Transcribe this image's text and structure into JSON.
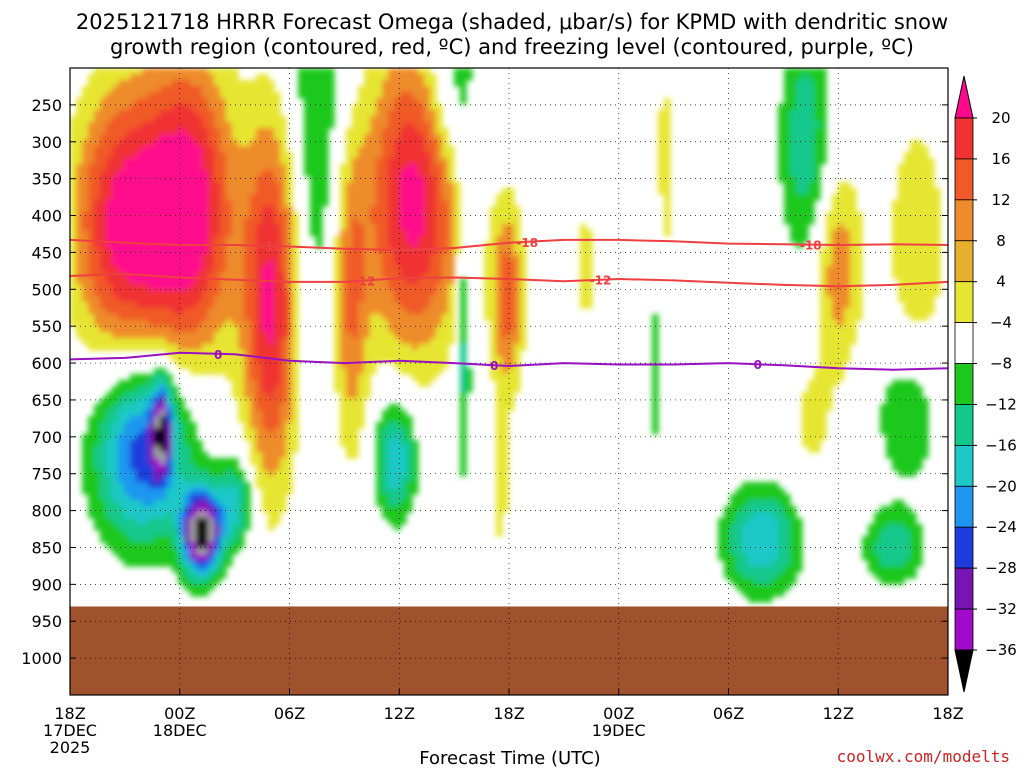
{
  "title_line1": "2025121718 HRRR Forecast Omega (shaded, μbar/s) for KPMD with dendritic snow",
  "title_line2": "growth region (contoured, red, ºC) and freezing level (contoured, purple, ºC)",
  "credit": "coolwx.com/modelts",
  "chart_data": {
    "type": "heatmap",
    "title": "2025121718 HRRR Forecast Omega (shaded, μbar/s) for KPMD with dendritic snow growth region (contoured, red, ºC) and freezing level (contoured, purple, ºC)",
    "xlabel": "Forecast Time (UTC)",
    "ylabel": "",
    "x_range_hours": [
      0,
      48
    ],
    "y_range_hpa": [
      200,
      1050
    ],
    "x_ticks": [
      {
        "hour": 0,
        "l1": "18Z",
        "l2": "17DEC",
        "l3": "2025"
      },
      {
        "hour": 6,
        "l1": "00Z",
        "l2": "18DEC",
        "l3": ""
      },
      {
        "hour": 12,
        "l1": "06Z",
        "l2": "",
        "l3": ""
      },
      {
        "hour": 18,
        "l1": "12Z",
        "l2": "",
        "l3": ""
      },
      {
        "hour": 24,
        "l1": "18Z",
        "l2": "",
        "l3": ""
      },
      {
        "hour": 30,
        "l1": "00Z",
        "l2": "19DEC",
        "l3": ""
      },
      {
        "hour": 36,
        "l1": "06Z",
        "l2": "",
        "l3": ""
      },
      {
        "hour": 42,
        "l1": "12Z",
        "l2": "",
        "l3": ""
      },
      {
        "hour": 48,
        "l1": "18Z",
        "l2": "",
        "l3": ""
      }
    ],
    "y_ticks": [
      "250",
      "300",
      "350",
      "400",
      "450",
      "500",
      "550",
      "600",
      "650",
      "700",
      "750",
      "800",
      "850",
      "900",
      "950",
      "1000"
    ],
    "ground_level_hpa": 930,
    "colorbar": {
      "unit": "μbar/s",
      "labels": [
        "20",
        "16",
        "12",
        "8",
        "4",
        "−4",
        "−8",
        "−12",
        "−16",
        "−20",
        "−24",
        "−28",
        "−32",
        "−36"
      ],
      "colors": [
        "#ff0a8c",
        "#f03232",
        "#f05a28",
        "#ee8b2a",
        "#e6b02e",
        "#e6e632",
        "#ffffff",
        "#1ec81e",
        "#14c88c",
        "#1ec8c8",
        "#1e96f0",
        "#1e3cdc",
        "#7814b4",
        "#a00ac8",
        "#a0a0a0",
        "#000000"
      ]
    },
    "omega_blobs": [
      {
        "hour": 3.0,
        "hpa": 410,
        "rh": 2.8,
        "rp": 180,
        "peak": 22
      },
      {
        "hour": 6.6,
        "hpa": 390,
        "rh": 2.4,
        "rp": 200,
        "peak": 22
      },
      {
        "hour": 11.0,
        "hpa": 520,
        "rh": 1.5,
        "rp": 240,
        "peak": 21
      },
      {
        "hour": 18.8,
        "hpa": 380,
        "rh": 2.6,
        "rp": 200,
        "peak": 22
      },
      {
        "hour": 15.3,
        "hpa": 520,
        "rh": 1.0,
        "rp": 210,
        "peak": 12
      },
      {
        "hour": 23.9,
        "hpa": 510,
        "rh": 0.9,
        "rp": 130,
        "peak": 14
      },
      {
        "hour": 42.0,
        "hpa": 470,
        "rh": 1.3,
        "rp": 140,
        "peak": 11
      },
      {
        "hour": 46.3,
        "hpa": 440,
        "rh": 1.6,
        "rp": 170,
        "peak": 8
      },
      {
        "hour": 32.5,
        "hpa": 360,
        "rh": 0.7,
        "rp": 200,
        "peak": 6
      },
      {
        "hour": 28.2,
        "hpa": 470,
        "rh": 0.6,
        "rp": 140,
        "peak": 5
      },
      {
        "hour": 40.5,
        "hpa": 680,
        "rh": 1.3,
        "rp": 90,
        "peak": 5
      },
      {
        "hour": 23.5,
        "hpa": 780,
        "rh": 0.6,
        "rp": 120,
        "peak": 5
      },
      {
        "hour": 4.0,
        "hpa": 720,
        "rh": 2.6,
        "rp": 120,
        "peak": -23
      },
      {
        "hour": 7.2,
        "hpa": 830,
        "rh": 1.0,
        "rp": 55,
        "peak": -40
      },
      {
        "hour": 5.0,
        "hpa": 690,
        "rh": 0.5,
        "rp": 60,
        "peak": -25
      },
      {
        "hour": 9.0,
        "hpa": 790,
        "rh": 1.0,
        "rp": 60,
        "peak": -14
      },
      {
        "hour": 17.8,
        "hpa": 730,
        "rh": 1.1,
        "rp": 80,
        "peak": -16
      },
      {
        "hour": 13.5,
        "hpa": 230,
        "rh": 1.5,
        "rp": 400,
        "peak": -8
      },
      {
        "hour": 21.0,
        "hpa": 230,
        "rh": 1.5,
        "rp": 130,
        "peak": -9
      },
      {
        "hour": 21.5,
        "hpa": 560,
        "rh": 0.4,
        "rp": 200,
        "peak": -11
      },
      {
        "hour": 40.2,
        "hpa": 300,
        "rh": 1.4,
        "rp": 160,
        "peak": -11
      },
      {
        "hour": 37.8,
        "hpa": 840,
        "rh": 2.0,
        "rp": 70,
        "peak": -16
      },
      {
        "hour": 45.8,
        "hpa": 670,
        "rh": 1.8,
        "rp": 100,
        "peak": -8
      },
      {
        "hour": 45.0,
        "hpa": 850,
        "rh": 1.6,
        "rp": 50,
        "peak": -11
      },
      {
        "hour": 32.0,
        "hpa": 580,
        "rh": 0.6,
        "rp": 200,
        "peak": -6
      }
    ],
    "contours": [
      {
        "name": "-18",
        "color": "#ee4040",
        "label_hours": [
          11.0,
          25.0,
          40.5
        ],
        "points": [
          [
            0,
            433
          ],
          [
            3,
            437
          ],
          [
            6,
            440
          ],
          [
            9,
            440
          ],
          [
            12,
            442
          ],
          [
            15,
            445
          ],
          [
            18,
            447
          ],
          [
            21,
            444
          ],
          [
            24,
            437
          ],
          [
            27,
            433
          ],
          [
            30,
            433
          ],
          [
            33,
            435
          ],
          [
            36,
            438
          ],
          [
            39,
            439
          ],
          [
            42,
            440
          ],
          [
            45,
            439
          ],
          [
            48,
            440
          ]
        ]
      },
      {
        "name": "-12",
        "color": "#ee4040",
        "label_hours": [
          16.1,
          29.0
        ],
        "points": [
          [
            0,
            482
          ],
          [
            3,
            479
          ],
          [
            6,
            484
          ],
          [
            9,
            487
          ],
          [
            12,
            490
          ],
          [
            15,
            490
          ],
          [
            18,
            485
          ],
          [
            21,
            484
          ],
          [
            24,
            486
          ],
          [
            27,
            489
          ],
          [
            30,
            486
          ],
          [
            33,
            488
          ],
          [
            36,
            491
          ],
          [
            39,
            494
          ],
          [
            42,
            496
          ],
          [
            45,
            494
          ],
          [
            48,
            490
          ]
        ]
      },
      {
        "name": "0",
        "color": "#9a10c0",
        "label_hours": [
          8.1,
          23.2,
          37.6
        ],
        "points": [
          [
            0,
            595
          ],
          [
            3,
            593
          ],
          [
            6,
            586
          ],
          [
            9,
            588
          ],
          [
            12,
            597
          ],
          [
            15,
            600
          ],
          [
            18,
            597
          ],
          [
            21,
            600
          ],
          [
            24,
            604
          ],
          [
            27,
            600
          ],
          [
            30,
            602
          ],
          [
            33,
            602
          ],
          [
            36,
            600
          ],
          [
            39,
            603
          ],
          [
            42,
            607
          ],
          [
            45,
            609
          ],
          [
            48,
            607
          ]
        ]
      }
    ]
  }
}
